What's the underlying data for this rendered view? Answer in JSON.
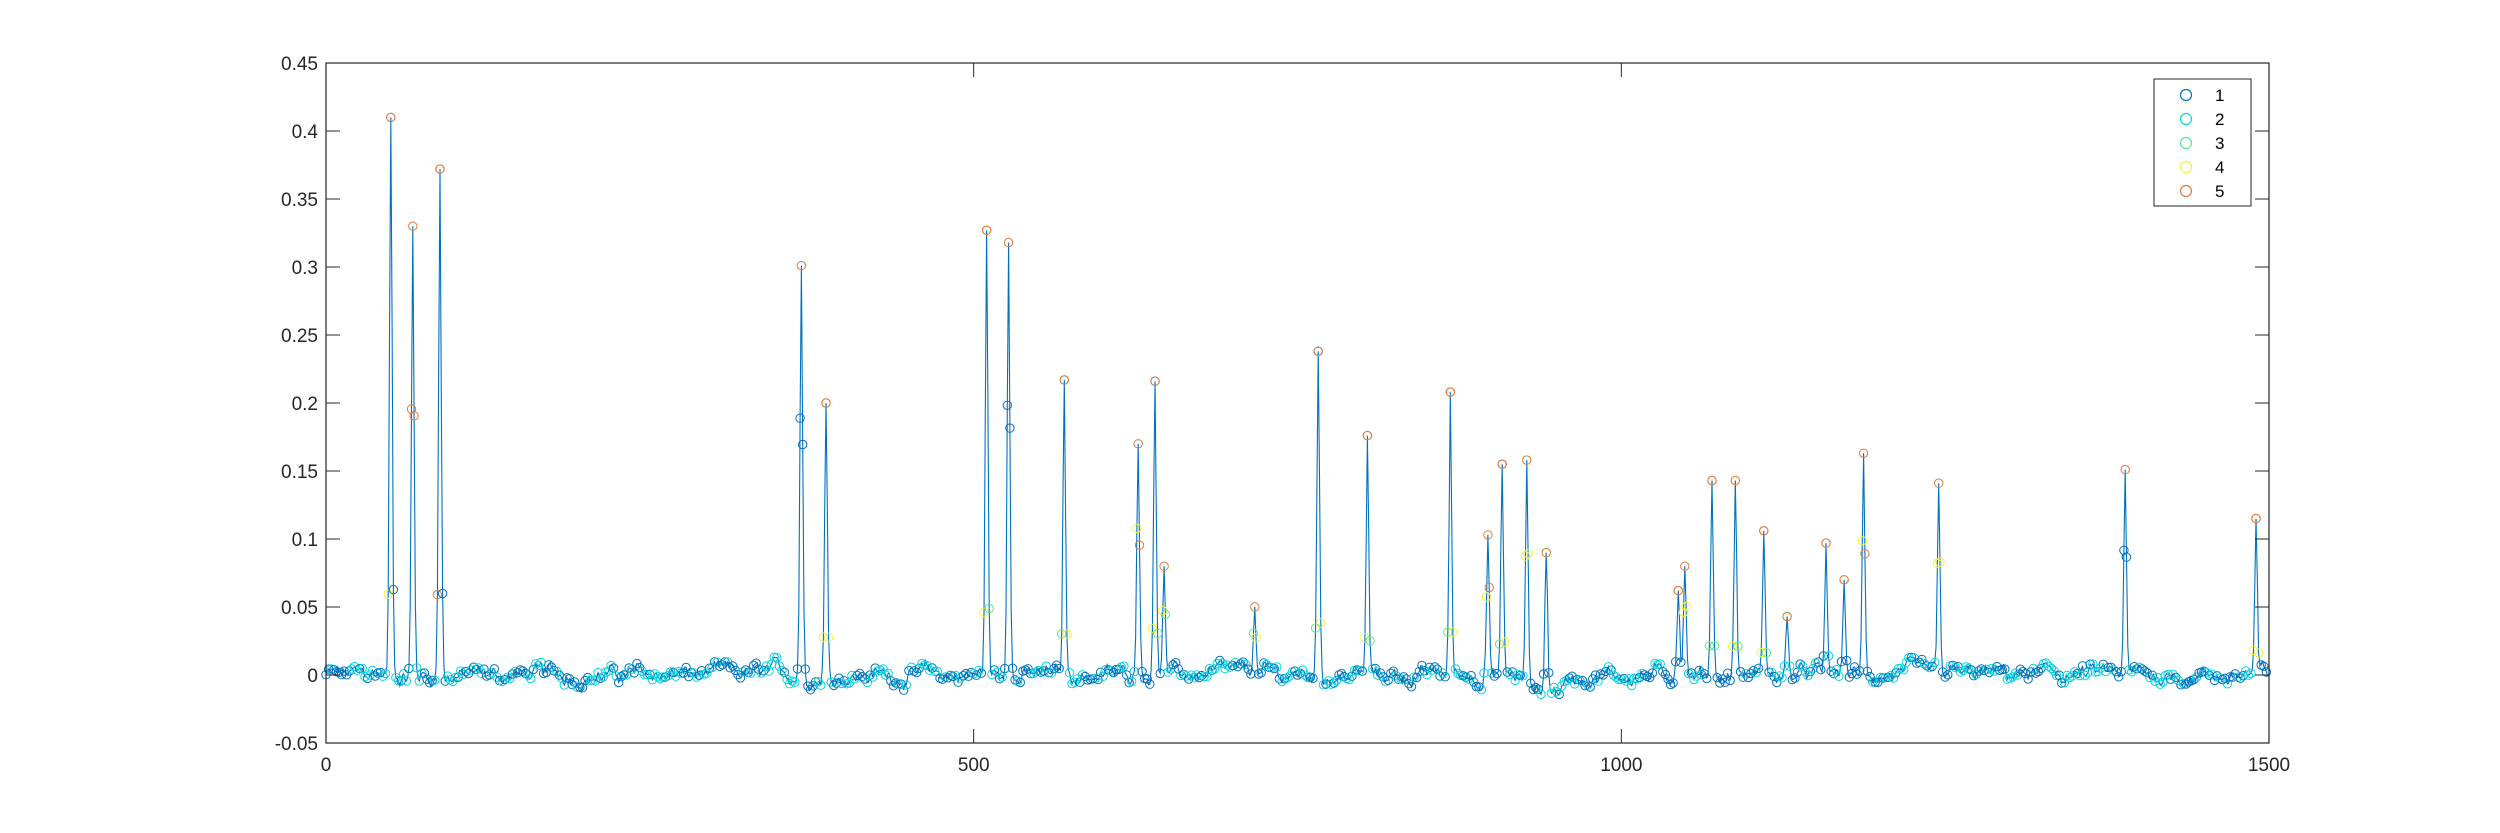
{
  "chart_data": {
    "type": "scatter",
    "title": "",
    "xlabel": "",
    "ylabel": "",
    "xlim": [
      0,
      1500
    ],
    "ylim": [
      -0.05,
      0.45
    ],
    "x_ticks": [
      0,
      500,
      1000,
      1500
    ],
    "x_tick_labels": [
      "0",
      "500",
      "1000",
      "1500"
    ],
    "y_ticks": [
      -0.05,
      0,
      0.05,
      0.1,
      0.15,
      0.2,
      0.25,
      0.3,
      0.35,
      0.4,
      0.45
    ],
    "y_tick_labels": [
      "-0.05",
      "0",
      "0.05",
      "0.1",
      "0.15",
      "0.2",
      "0.25",
      "0.3",
      "0.35",
      "0.4",
      "0.45"
    ],
    "grid": false,
    "legend_position": "top-right",
    "connecting_line_color": "#0072BD",
    "series": [
      {
        "name": "1",
        "color": "#0072BD"
      },
      {
        "name": "2",
        "color": "#00D6E0"
      },
      {
        "name": "3",
        "color": "#5BE68A"
      },
      {
        "name": "4",
        "color": "#F2F23A"
      },
      {
        "name": "5",
        "color": "#E07A3A"
      }
    ],
    "peaks": [
      {
        "x": 50,
        "y": 0.41
      },
      {
        "x": 67,
        "y": 0.33
      },
      {
        "x": 88,
        "y": 0.372
      },
      {
        "x": 367,
        "y": 0.301
      },
      {
        "x": 386,
        "y": 0.2
      },
      {
        "x": 510,
        "y": 0.327
      },
      {
        "x": 527,
        "y": 0.318
      },
      {
        "x": 570,
        "y": 0.217
      },
      {
        "x": 627,
        "y": 0.17
      },
      {
        "x": 640,
        "y": 0.216
      },
      {
        "x": 647,
        "y": 0.08
      },
      {
        "x": 717,
        "y": 0.05
      },
      {
        "x": 766,
        "y": 0.238
      },
      {
        "x": 804,
        "y": 0.176
      },
      {
        "x": 868,
        "y": 0.208
      },
      {
        "x": 897,
        "y": 0.103
      },
      {
        "x": 908,
        "y": 0.155
      },
      {
        "x": 927,
        "y": 0.158
      },
      {
        "x": 942,
        "y": 0.09
      },
      {
        "x": 1044,
        "y": 0.062
      },
      {
        "x": 1049,
        "y": 0.08
      },
      {
        "x": 1070,
        "y": 0.143
      },
      {
        "x": 1088,
        "y": 0.143
      },
      {
        "x": 1110,
        "y": 0.106
      },
      {
        "x": 1128,
        "y": 0.043
      },
      {
        "x": 1158,
        "y": 0.097
      },
      {
        "x": 1172,
        "y": 0.07
      },
      {
        "x": 1187,
        "y": 0.163
      },
      {
        "x": 1245,
        "y": 0.141
      },
      {
        "x": 1389,
        "y": 0.151
      },
      {
        "x": 1490,
        "y": 0.115
      }
    ]
  }
}
